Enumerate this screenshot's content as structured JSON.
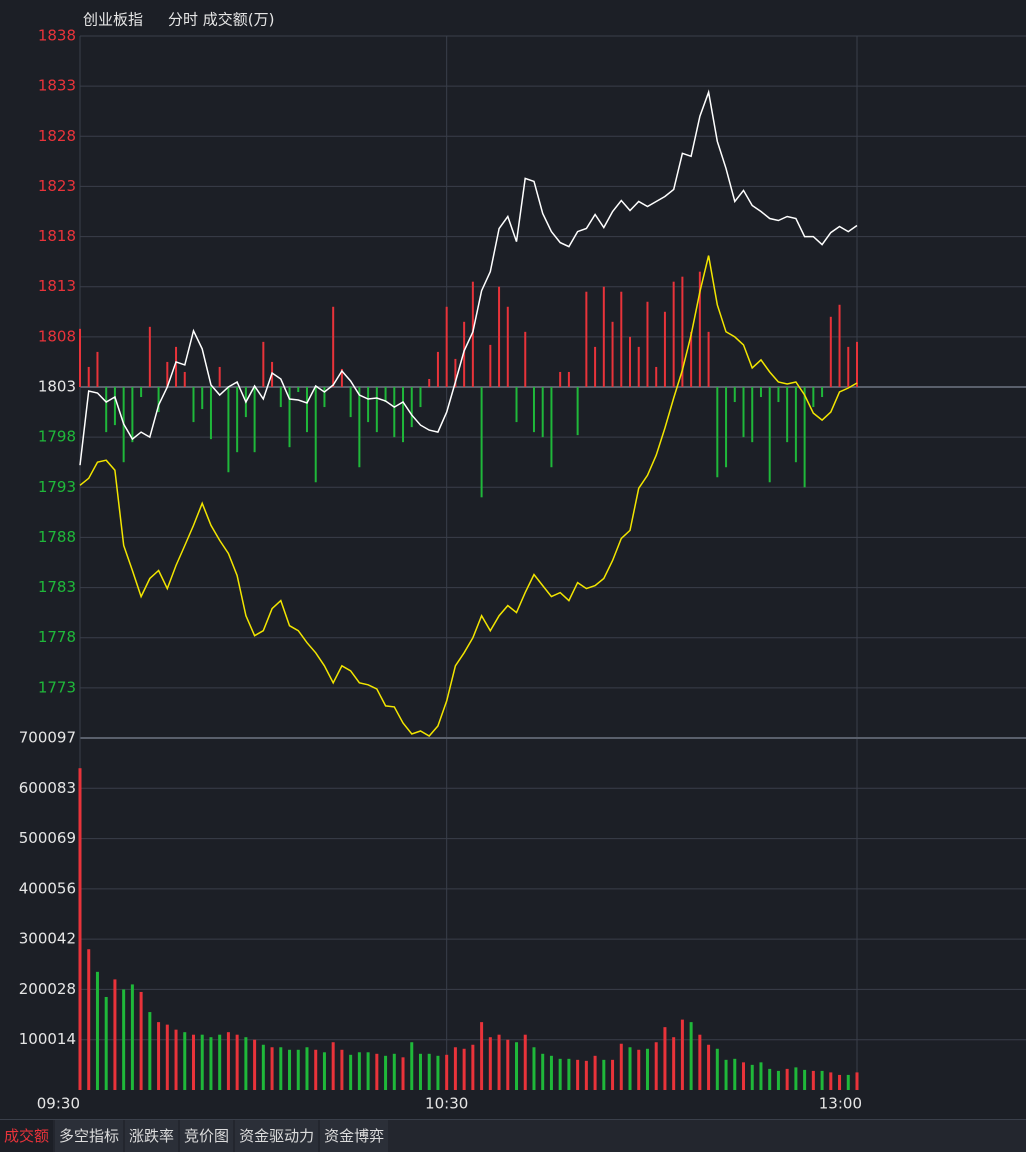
{
  "chart_data": [
    {
      "type": "line",
      "title": "创业板指",
      "subtitle": "分时 成交额(万)",
      "ylim": [
        1768,
        1838
      ],
      "yticks": [
        1838,
        1833,
        1828,
        1823,
        1818,
        1813,
        1808,
        1803,
        1798,
        1793,
        1788,
        1783,
        1778,
        1773
      ],
      "up_color": "#e8333a",
      "down_color": "#1fb83a",
      "flat_color": "#e6e6e6",
      "grid": true,
      "series": [
        {
          "type": "line",
          "color": "#ffffff",
          "values": [
            1795.2,
            1802.6,
            1802.4,
            1801.5,
            1802.0,
            1799.3,
            1797.8,
            1798.5,
            1798.0,
            1801.2,
            1803.0,
            1805.5,
            1805.2,
            1808.6,
            1806.8,
            1803.2,
            1802.2,
            1803.0,
            1803.5,
            1801.5,
            1803.1,
            1801.8,
            1804.4,
            1803.8,
            1801.8,
            1801.7,
            1801.4,
            1803.1,
            1802.5,
            1803.2,
            1804.6,
            1803.6,
            1802.2,
            1801.8,
            1801.9,
            1801.6,
            1801.0,
            1801.5,
            1800.2,
            1799.2,
            1798.7,
            1798.5,
            1800.5,
            1803.5,
            1806.6,
            1808.5,
            1812.6,
            1814.5,
            1818.8,
            1820.0,
            1817.5,
            1823.8,
            1823.5,
            1820.3,
            1818.5,
            1817.4,
            1817.0,
            1818.5,
            1818.8,
            1820.2,
            1818.9,
            1820.5,
            1821.6,
            1820.6,
            1821.5,
            1821.0,
            1821.5,
            1822.0,
            1822.7,
            1826.3,
            1826.0,
            1830.0,
            1832.4,
            1827.5,
            1824.8,
            1821.5,
            1822.6,
            1821.1,
            1820.5,
            1819.8,
            1819.6,
            1820.0,
            1819.8,
            1818.0,
            1818.0,
            1817.2,
            1818.4,
            1819.0,
            1818.5,
            1819.1
          ]
        },
        {
          "type": "line",
          "color": "#f2e500",
          "values": [
            1793.2,
            1793.9,
            1795.5,
            1795.7,
            1794.7,
            1787.2,
            1784.7,
            1782.1,
            1783.9,
            1784.7,
            1782.9,
            1785.2,
            1787.2,
            1789.2,
            1791.4,
            1789.2,
            1787.7,
            1786.4,
            1784.2,
            1780.2,
            1778.2,
            1778.7,
            1780.9,
            1781.7,
            1779.2,
            1778.7,
            1777.5,
            1776.5,
            1775.2,
            1773.5,
            1775.2,
            1774.7,
            1773.5,
            1773.3,
            1772.9,
            1771.2,
            1771.1,
            1769.5,
            1768.4,
            1768.7,
            1768.2,
            1769.2,
            1771.7,
            1775.2,
            1776.5,
            1778.0,
            1780.2,
            1778.7,
            1780.2,
            1781.2,
            1780.5,
            1782.5,
            1784.3,
            1783.2,
            1782.1,
            1782.5,
            1781.7,
            1783.5,
            1782.9,
            1783.2,
            1783.9,
            1785.7,
            1787.9,
            1788.7,
            1792.9,
            1794.2,
            1796.2,
            1798.9,
            1801.9,
            1804.7,
            1808.2,
            1812.5,
            1816.1,
            1811.2,
            1808.5,
            1808.0,
            1807.2,
            1804.9,
            1805.7,
            1804.5,
            1803.5,
            1803.3,
            1803.5,
            1802.2,
            1800.4,
            1799.7,
            1800.5,
            1802.5,
            1802.9,
            1803.4
          ]
        },
        {
          "type": "bar",
          "values": [
            1808.8,
            1805.0,
            1806.5,
            1798.5,
            1799.2,
            1795.5,
            1797.5,
            1802.0,
            1809.0,
            1800.5,
            1805.5,
            1807.0,
            1804.5,
            1799.5,
            1800.8,
            1797.8,
            1805.0,
            1794.5,
            1796.5,
            1800.0,
            1796.5,
            1807.5,
            1805.5,
            1801.0,
            1797.0,
            1802.5,
            1798.5,
            1793.5,
            1801.0,
            1811.0,
            1804.8,
            1800.0,
            1795.0,
            1799.5,
            1798.5,
            1801.5,
            1798.0,
            1797.5,
            1799.0,
            1801.0,
            1803.8,
            1806.5,
            1811.0,
            1805.8,
            1809.5,
            1813.5,
            1792.0,
            1807.2,
            1813.0,
            1811.0,
            1799.5,
            1808.5,
            1798.5,
            1798.0,
            1795.0,
            1804.5,
            1804.5,
            1798.2,
            1812.5,
            1807.0,
            1813.0,
            1809.5,
            1812.5,
            1808.0,
            1807.0,
            1811.5,
            1805.0,
            1810.5,
            1813.5,
            1814.0,
            1808.5,
            1814.5,
            1808.5,
            1794.0,
            1795.0,
            1801.5,
            1798.0,
            1797.5,
            1802.0,
            1793.5,
            1801.5,
            1797.5,
            1795.5,
            1793.0,
            1801.0,
            1802.0,
            1810.0,
            1811.2,
            1807.0,
            1807.5
          ]
        }
      ]
    },
    {
      "type": "bar",
      "ylim": [
        0,
        700097
      ],
      "yticks": [
        700097,
        600083,
        500069,
        400056,
        300042,
        200028,
        100014
      ],
      "tick_color": "#e6e6e6",
      "grid": true,
      "categories": [
        "09:30",
        null,
        null,
        null,
        null,
        null,
        null,
        null,
        null,
        null,
        null,
        null,
        null,
        null,
        null,
        null,
        null,
        null,
        null,
        null,
        null,
        null,
        null,
        null,
        null,
        null,
        null,
        null,
        null,
        null,
        null,
        null,
        null,
        null,
        null,
        null,
        null,
        null,
        null,
        null,
        null,
        null,
        "10:30",
        null,
        null,
        null,
        null,
        null,
        null,
        null,
        null,
        null,
        null,
        null,
        null,
        null,
        null,
        null,
        null,
        null,
        null,
        null,
        null,
        null,
        null,
        null,
        null,
        null,
        null,
        null,
        null,
        null,
        null,
        null,
        null,
        null,
        null,
        null,
        null,
        null,
        null,
        null,
        null,
        null,
        null,
        null,
        null,
        null,
        null,
        "13:00"
      ],
      "values": [
        640000,
        280000,
        235000,
        185000,
        220000,
        200000,
        210000,
        195000,
        155000,
        135000,
        130000,
        120000,
        115000,
        110000,
        110000,
        105000,
        110000,
        115000,
        110000,
        105000,
        100000,
        90000,
        85000,
        85000,
        80000,
        80000,
        85000,
        80000,
        75000,
        95000,
        80000,
        70000,
        75000,
        75000,
        72000,
        68000,
        72000,
        65000,
        95000,
        72000,
        72000,
        68000,
        70000,
        85000,
        82000,
        90000,
        135000,
        105000,
        110000,
        100000,
        95000,
        110000,
        85000,
        72000,
        68000,
        62000,
        62000,
        60000,
        58000,
        68000,
        60000,
        60000,
        92000,
        85000,
        80000,
        82000,
        95000,
        125000,
        105000,
        140000,
        135000,
        110000,
        90000,
        82000,
        60000,
        62000,
        55000,
        50000,
        55000,
        42000,
        38000,
        42000,
        45000,
        40000,
        38000,
        38000,
        35000,
        30000,
        30000,
        35000
      ]
    }
  ],
  "tabs": [
    "成交额",
    "多空指标",
    "涨跌率",
    "竞价图",
    "资金驱动力",
    "资金博弈"
  ]
}
